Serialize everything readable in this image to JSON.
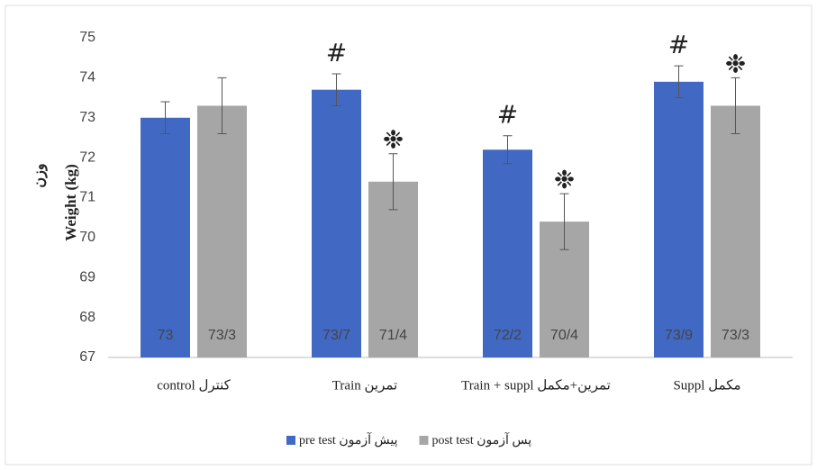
{
  "chart_data": {
    "type": "bar",
    "y_label_fa": "وزن",
    "y_label": "Weight (kg)",
    "categories": [
      "control کنترل",
      "Train تمرین",
      "Train + suppl  تمرین+مکمل",
      "Suppl مکمل"
    ],
    "series": [
      {
        "name": "pre test پیش آزمون",
        "color": "#4169c4",
        "values": [
          73,
          73.7,
          72.2,
          73.9
        ],
        "errors": [
          0.4,
          0.4,
          0.35,
          0.4
        ],
        "value_labels": [
          "73",
          "73/7",
          "72/2",
          "73/9"
        ],
        "markers": [
          null,
          "#",
          "#",
          "#"
        ]
      },
      {
        "name": "post test پس آزمون",
        "color": "#a6a6a6",
        "values": [
          73.3,
          71.4,
          70.4,
          73.3
        ],
        "errors": [
          0.7,
          0.7,
          0.7,
          0.7
        ],
        "value_labels": [
          "73/3",
          "71/4",
          "70/4",
          "73/3"
        ],
        "markers": [
          null,
          "❉",
          "❉",
          "❉"
        ]
      }
    ],
    "ylim": [
      67,
      75
    ],
    "yticks": [
      67,
      68,
      69,
      70,
      71,
      72,
      73,
      74,
      75
    ],
    "grid": false,
    "legend": "bottom"
  }
}
